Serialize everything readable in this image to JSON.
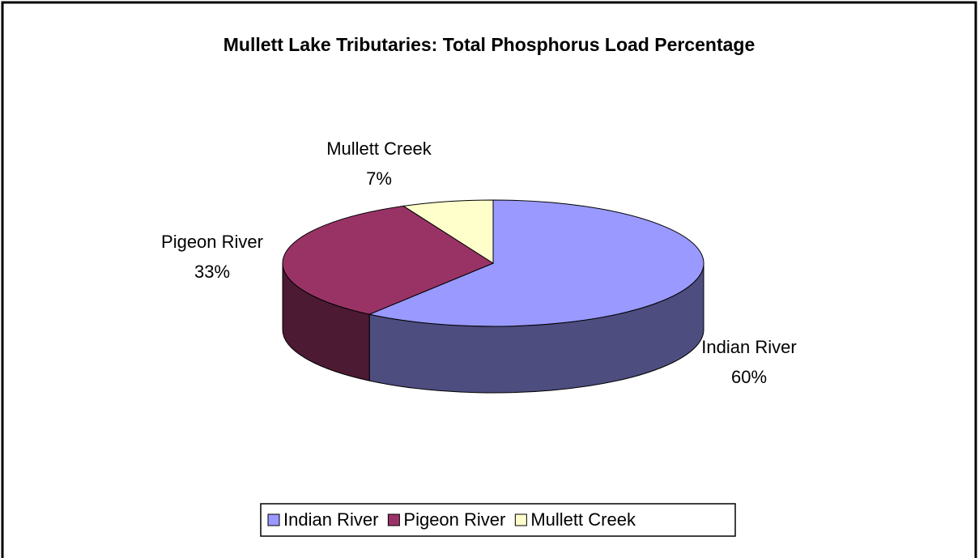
{
  "chart_data": {
    "type": "pie3d",
    "title": "Mullett Lake Tributaries: Total Phosphorus Load Percentage",
    "categories": [
      "Indian River",
      "Pigeon River",
      "Mullett Creek"
    ],
    "values": [
      60,
      33,
      7
    ],
    "value_labels": [
      "60%",
      "33%",
      "7%"
    ],
    "colors": [
      "#9999ff",
      "#993366",
      "#ffffcc"
    ],
    "legend": "bottom"
  }
}
